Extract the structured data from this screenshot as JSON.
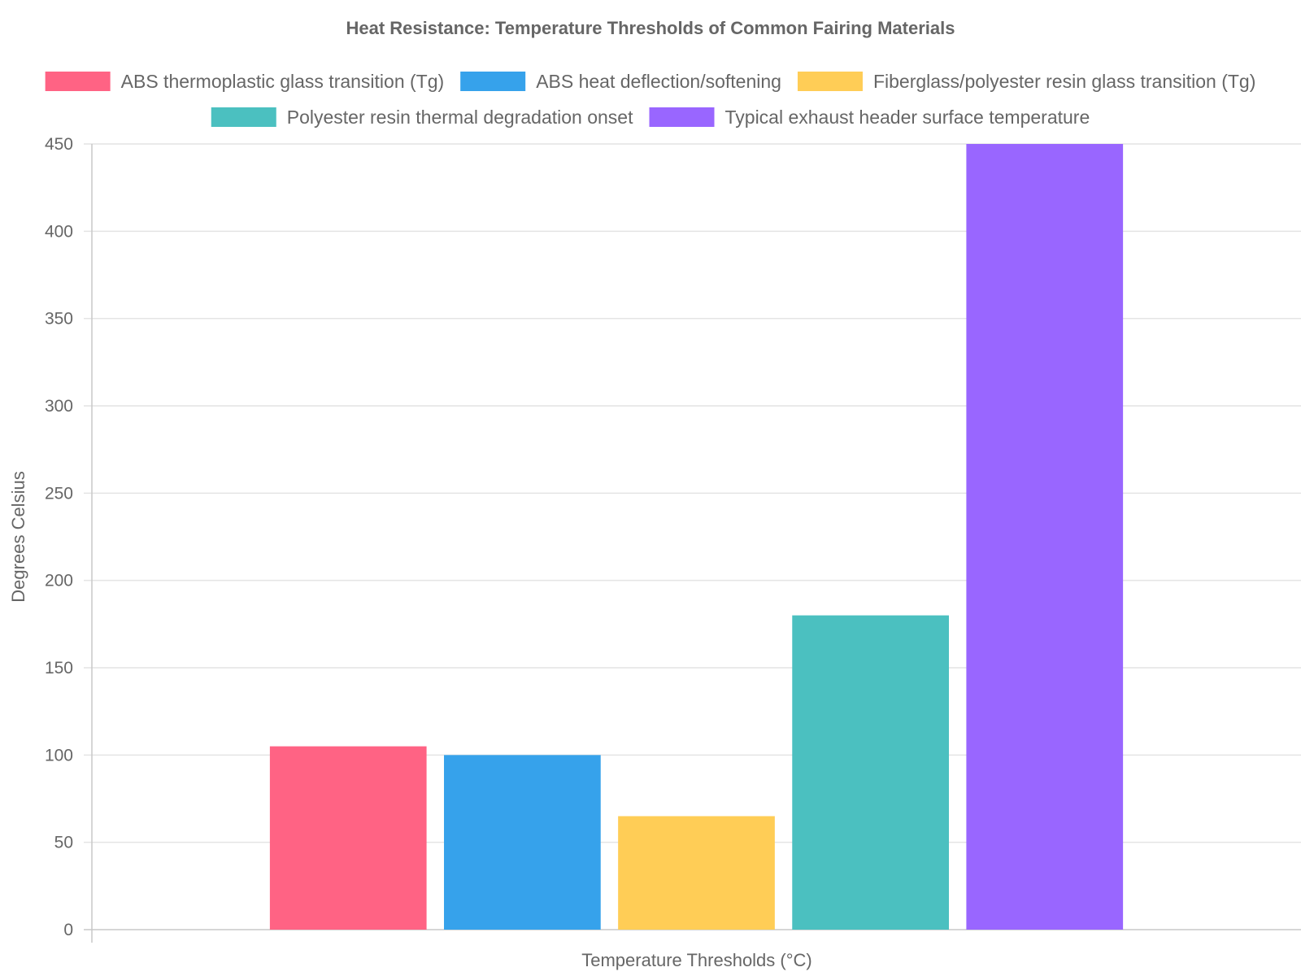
{
  "chart_data": {
    "type": "bar",
    "title": "Heat Resistance: Temperature Thresholds of Common Fairing Materials",
    "xlabel": "Temperature Thresholds (°C)",
    "ylabel": "Degrees Celsius",
    "ylim": [
      0,
      450
    ],
    "yticks": [
      0,
      50,
      100,
      150,
      200,
      250,
      300,
      350,
      400,
      450
    ],
    "grid": true,
    "legend_position": "top",
    "series": [
      {
        "name": "ABS thermoplastic glass transition (Tg)",
        "value": 105,
        "color": "#ff6384"
      },
      {
        "name": "ABS heat deflection/softening",
        "value": 100,
        "color": "#36a2eb"
      },
      {
        "name": "Fiberglass/polyester resin glass transition (Tg)",
        "value": 65,
        "color": "#ffcd56"
      },
      {
        "name": "Polyester resin thermal degradation onset",
        "value": 180,
        "color": "#4bc0c0"
      },
      {
        "name": "Typical exhaust header surface temperature",
        "value": 450,
        "color": "#9966ff"
      }
    ]
  }
}
